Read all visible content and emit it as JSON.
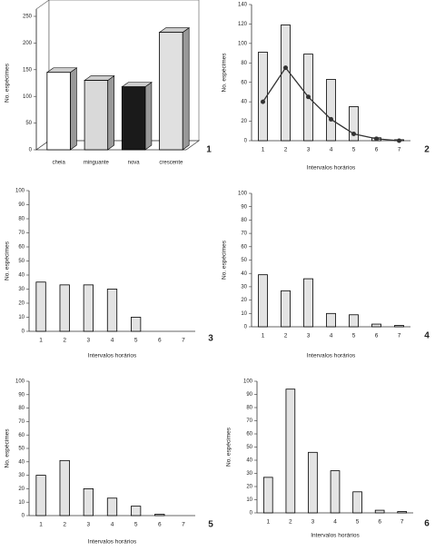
{
  "chart_data": [
    {
      "type": "bar3d",
      "panel_label": "1",
      "y_label": "No. espécimes",
      "categories": [
        "cheia",
        "minguante",
        "nova",
        "crescente"
      ],
      "values": [
        145,
        130,
        118,
        220
      ],
      "colors": [
        "#ffffff",
        "#d9d9d9",
        "#1a1a1a",
        "#e0e0e0"
      ],
      "ylim": [
        0,
        250
      ],
      "yticks": [
        0,
        50,
        100,
        150,
        200,
        250
      ]
    },
    {
      "type": "bar",
      "panel_label": "2",
      "x_label": "Intervalos horários",
      "y_label": "No. espécimes",
      "categories": [
        "1",
        "2",
        "3",
        "4",
        "5",
        "6",
        "7"
      ],
      "values": [
        91,
        119,
        89,
        63,
        35,
        3,
        1
      ],
      "color": "#e3e3e3",
      "line": {
        "values": [
          40,
          75,
          45,
          22,
          7,
          2,
          0
        ],
        "color": "#333333"
      },
      "ylim": [
        0,
        140
      ],
      "yticks": [
        0,
        20,
        40,
        60,
        80,
        100,
        120,
        140
      ]
    },
    {
      "type": "bar",
      "panel_label": "3",
      "x_label": "Intervalos horários",
      "y_label": "No. espécimes",
      "categories": [
        "1",
        "2",
        "3",
        "4",
        "5",
        "6",
        "7"
      ],
      "values": [
        35,
        33,
        33,
        30,
        10,
        0,
        0
      ],
      "color": "#e3e3e3",
      "ylim": [
        0,
        100
      ],
      "yticks": [
        0,
        10,
        20,
        30,
        40,
        50,
        60,
        70,
        80,
        90,
        100
      ]
    },
    {
      "type": "bar",
      "panel_label": "4",
      "x_label": "Intervalos horários",
      "y_label": "No. espécimes",
      "categories": [
        "1",
        "2",
        "3",
        "4",
        "5",
        "6",
        "7"
      ],
      "values": [
        39,
        27,
        36,
        10,
        9,
        2,
        1
      ],
      "color": "#e3e3e3",
      "ylim": [
        0,
        100
      ],
      "yticks": [
        0,
        10,
        20,
        30,
        40,
        50,
        60,
        70,
        80,
        90,
        100
      ]
    },
    {
      "type": "bar",
      "panel_label": "5",
      "x_label": "Intervalos horários",
      "y_label": "No. espécimes",
      "categories": [
        "1",
        "2",
        "3",
        "4",
        "5",
        "6",
        "7"
      ],
      "values": [
        30,
        41,
        20,
        13,
        7,
        1,
        0
      ],
      "color": "#e3e3e3",
      "ylim": [
        0,
        100
      ],
      "yticks": [
        0,
        10,
        20,
        30,
        40,
        50,
        60,
        70,
        80,
        90,
        100
      ]
    },
    {
      "type": "bar",
      "panel_label": "6",
      "x_label": "Intervalos horários",
      "y_label": "No. espécimes",
      "categories": [
        "1",
        "2",
        "3",
        "4",
        "5",
        "6",
        "7"
      ],
      "values": [
        27,
        94,
        46,
        32,
        16,
        2,
        1
      ],
      "color": "#e3e3e3",
      "ylim": [
        0,
        100
      ],
      "yticks": [
        0,
        10,
        20,
        30,
        40,
        50,
        60,
        70,
        80,
        90,
        100
      ]
    }
  ]
}
